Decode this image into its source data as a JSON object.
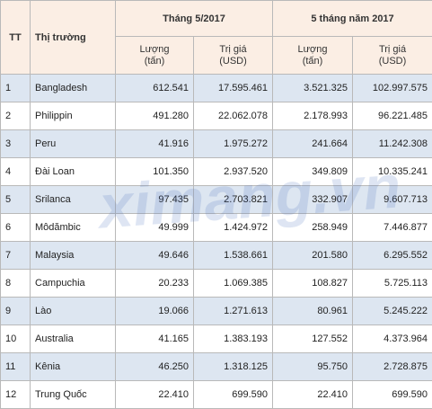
{
  "header": {
    "tt": "TT",
    "market": "Thị trường",
    "group1": "Tháng 5/2017",
    "group2": "5 tháng năm 2017",
    "columns": [
      {
        "label": "Lượng",
        "unit": "(tấn)"
      },
      {
        "label": "Trị giá",
        "unit": "(USD)"
      },
      {
        "label": "Lượng",
        "unit": "(tấn)"
      },
      {
        "label": "Trị giá",
        "unit": "(USD)"
      }
    ]
  },
  "table": {
    "rows": [
      [
        "1",
        "Bangladesh",
        "612.541",
        "17.595.461",
        "3.521.325",
        "102.997.575"
      ],
      [
        "2",
        "Philippin",
        "491.280",
        "22.062.078",
        "2.178.993",
        "96.221.485"
      ],
      [
        "3",
        "Peru",
        "41.916",
        "1.975.272",
        "241.664",
        "11.242.308"
      ],
      [
        "4",
        "Đài Loan",
        "101.350",
        "2.937.520",
        "349.809",
        "10.335.241"
      ],
      [
        "5",
        "Srilanca",
        "97.435",
        "2.703.821",
        "332.907",
        "9.607.713"
      ],
      [
        "6",
        "Môdămbic",
        "49.999",
        "1.424.972",
        "258.949",
        "7.446.877"
      ],
      [
        "7",
        "Malaysia",
        "49.646",
        "1.538.661",
        "201.580",
        "6.295.552"
      ],
      [
        "8",
        "Campuchia",
        "20.233",
        "1.069.385",
        "108.827",
        "5.725.113"
      ],
      [
        "9",
        "Lào",
        "19.066",
        "1.271.613",
        "80.961",
        "5.245.222"
      ],
      [
        "10",
        "Australia",
        "41.165",
        "1.383.193",
        "127.552",
        "4.373.964"
      ],
      [
        "11",
        "Kênia",
        "46.250",
        "1.318.125",
        "95.750",
        "2.728.875"
      ],
      [
        "12",
        "Trung Quốc",
        "22.410",
        "699.590",
        "22.410",
        "699.590"
      ]
    ]
  },
  "watermark": "ximang.vn"
}
